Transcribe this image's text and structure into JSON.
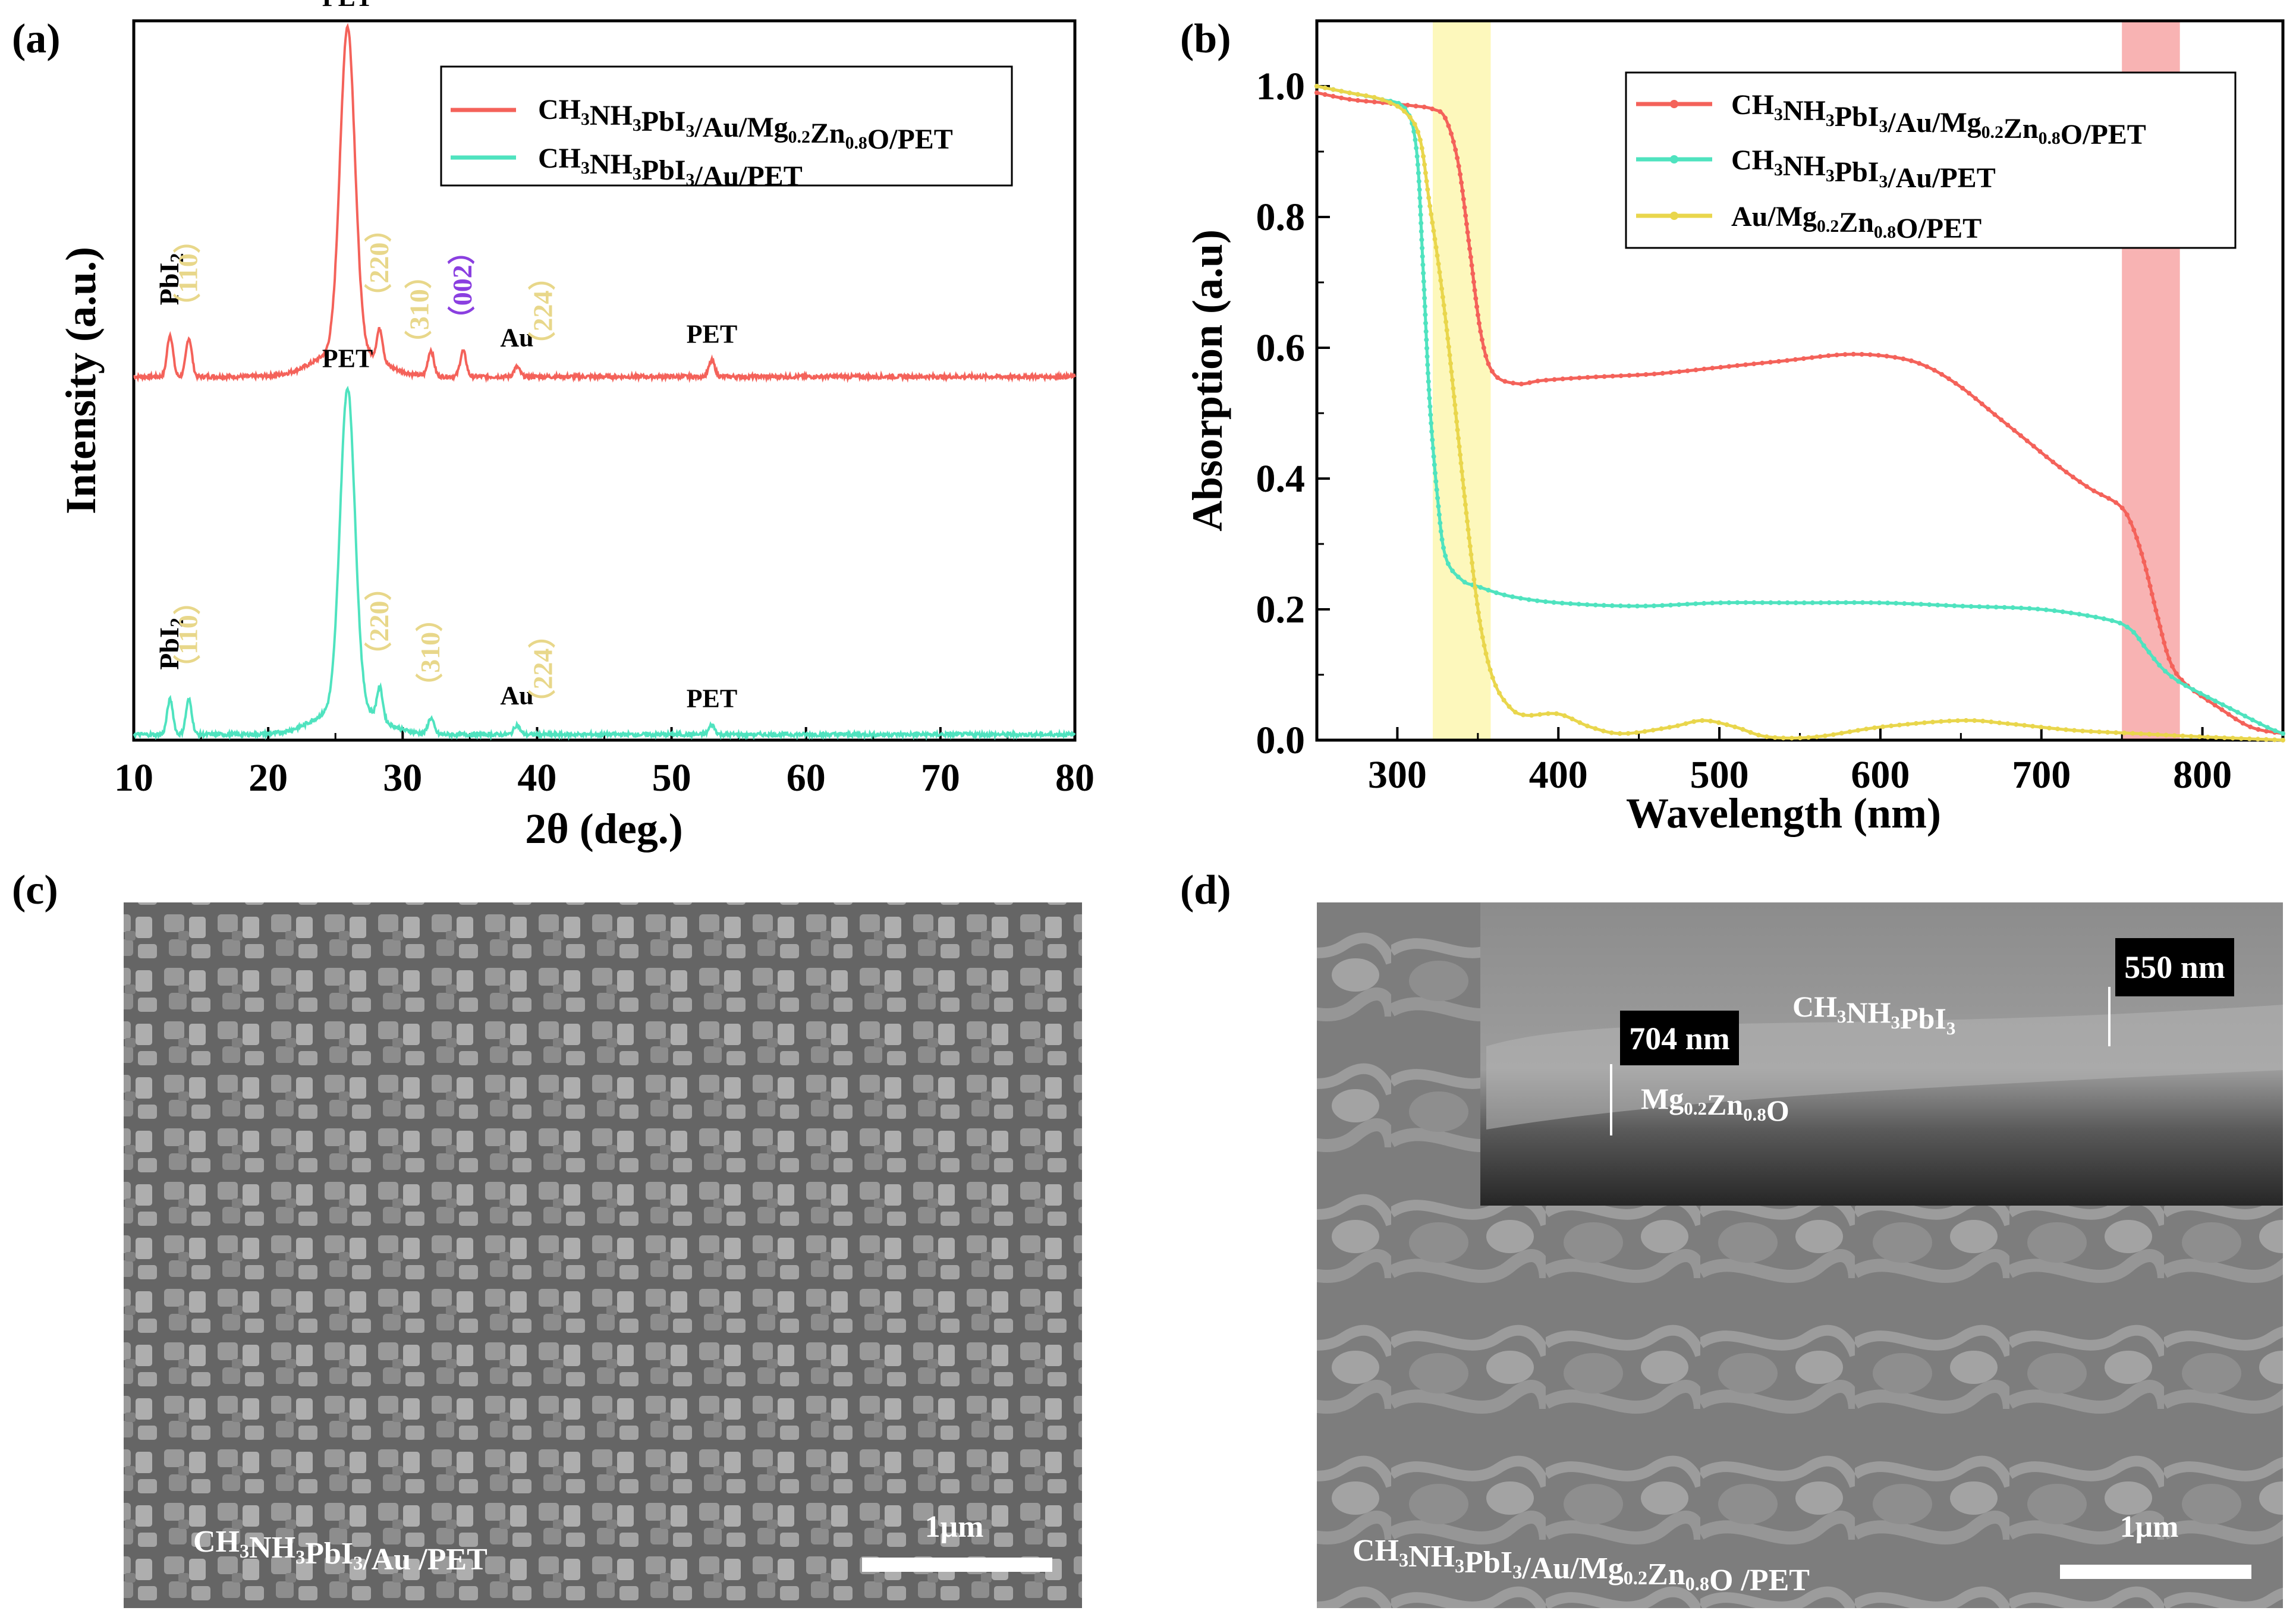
{
  "panels": {
    "a": "(a)",
    "b": "(b)",
    "c": "(c)",
    "d": "(d)"
  },
  "chart_data": [
    {
      "type": "line",
      "panel": "(a)",
      "title": "",
      "xlabel": "2θ (deg.)",
      "ylabel": "Intensity (a.u.)",
      "xlim": [
        10,
        80
      ],
      "xticks": [
        "10",
        "20",
        "30",
        "40",
        "50",
        "60",
        "70",
        "80"
      ],
      "series": [
        {
          "name": "CH3NH3PbI3/Au/Mg0.2Zn0.8O/PET",
          "legend_label": {
            "main": "CH",
            "parts": [
              [
                "CH",
                ""
              ],
              [
                "3",
                "sub"
              ],
              [
                "NH",
                ""
              ],
              [
                "3",
                "sub"
              ],
              [
                "PbI",
                ""
              ],
              [
                "3",
                "sub"
              ],
              [
                "/Au/Mg",
                ""
              ],
              [
                "0.2",
                "sub"
              ],
              [
                "Zn",
                ""
              ],
              [
                "0.8",
                "sub"
              ],
              [
                "O/PET",
                ""
              ]
            ]
          },
          "color": "#f4625a",
          "baseline": 0.1,
          "peaks": [
            [
              12.7,
              0.13
            ],
            [
              14.1,
              0.12
            ],
            [
              25.9,
              1.0
            ],
            [
              28.3,
              0.1
            ],
            [
              32.1,
              0.08
            ],
            [
              34.5,
              0.08
            ],
            [
              38.5,
              0.03
            ],
            [
              53,
              0.05
            ]
          ]
        },
        {
          "name": "CH3NH3PbI3/Au/PET",
          "legend_label": {
            "parts": [
              [
                "CH",
                ""
              ],
              [
                "3",
                "sub"
              ],
              [
                "NH",
                ""
              ],
              [
                "3",
                "sub"
              ],
              [
                "PbI",
                ""
              ],
              [
                "3",
                "sub"
              ],
              [
                "/Au/PET",
                ""
              ]
            ]
          },
          "color": "#4fe3bf",
          "baseline": 0.0,
          "peaks": [
            [
              12.7,
              0.11
            ],
            [
              14.1,
              0.11
            ],
            [
              25.9,
              1.0
            ],
            [
              28.3,
              0.1
            ],
            [
              32.1,
              0.05
            ],
            [
              38.5,
              0.03
            ],
            [
              53,
              0.03
            ]
          ]
        }
      ],
      "annotations": [
        {
          "text": "PET",
          "color": "#000000",
          "series": 0,
          "at": 25.9
        },
        {
          "text": "PbI2",
          "color": "#000000",
          "series": 0,
          "at": 12.7,
          "rot": true
        },
        {
          "text": "（110）",
          "color": "#e8d78a",
          "series": 0,
          "at": 14.1,
          "rot": true
        },
        {
          "text": "（220）",
          "color": "#e8d78a",
          "series": 0,
          "at": 28.3,
          "rot": true
        },
        {
          "text": "（310）",
          "color": "#e8d78a",
          "series": 0,
          "at": 31.3,
          "rot": true
        },
        {
          "text": "（002）",
          "color": "#8a3fe0",
          "series": 0,
          "at": 34.5,
          "rot": true
        },
        {
          "text": "Au",
          "color": "#000000",
          "series": 0,
          "at": 38.5
        },
        {
          "text": "（224）",
          "color": "#e8d78a",
          "series": 0,
          "at": 40.5,
          "rot": true
        },
        {
          "text": "PET",
          "color": "#000000",
          "series": 0,
          "at": 53
        },
        {
          "text": "PET",
          "color": "#000000",
          "series": 1,
          "at": 25.9
        },
        {
          "text": "PbI2",
          "color": "#000000",
          "series": 1,
          "at": 12.7,
          "rot": true
        },
        {
          "text": "（110）",
          "color": "#e8d78a",
          "series": 1,
          "at": 14.1,
          "rot": true
        },
        {
          "text": "（220）",
          "color": "#e8d78a",
          "series": 1,
          "at": 28.3,
          "rot": true
        },
        {
          "text": "（310）",
          "color": "#e8d78a",
          "series": 1,
          "at": 32.1,
          "rot": true
        },
        {
          "text": "Au",
          "color": "#000000",
          "series": 1,
          "at": 38.5
        },
        {
          "text": "（224）",
          "color": "#e8d78a",
          "series": 1,
          "at": 40.5,
          "rot": true
        },
        {
          "text": "PET",
          "color": "#000000",
          "series": 1,
          "at": 53
        }
      ]
    },
    {
      "type": "line",
      "panel": "(b)",
      "xlabel": "Wavelength (nm)",
      "ylabel": "Absorption (a.u)",
      "xlim": [
        250,
        850
      ],
      "ylim": [
        0.0,
        1.1
      ],
      "xticks": [
        300,
        400,
        500,
        600,
        700,
        800
      ],
      "yticks": [
        0.0,
        0.2,
        0.4,
        0.6,
        0.8,
        1.0
      ],
      "ytick_labels": [
        "0.0",
        "0.2",
        "0.4",
        "0.6",
        "0.8",
        "1.0"
      ],
      "xtick_labels": [
        "300",
        "400",
        "500",
        "600",
        "700",
        "800"
      ],
      "highlight_bands": [
        {
          "x": [
            322,
            358
          ],
          "color": "#fdf7b0"
        },
        {
          "x": [
            750,
            786
          ],
          "color": "#f7a6a6"
        }
      ],
      "series": [
        {
          "name": "CH3NH3PbI3/Au/Mg0.2Zn0.8O/PET",
          "legend_label": {
            "parts": [
              [
                "CH",
                ""
              ],
              [
                "3",
                "sub"
              ],
              [
                "NH",
                ""
              ],
              [
                "3",
                "sub"
              ],
              [
                "PbI",
                ""
              ],
              [
                "3",
                "sub"
              ],
              [
                "/Au/Mg",
                ""
              ],
              [
                "0.2",
                "sub"
              ],
              [
                "Zn",
                ""
              ],
              [
                "0.8",
                "sub"
              ],
              [
                "O/PET",
                ""
              ]
            ]
          },
          "color": "#f4625a",
          "x": [
            250,
            270,
            290,
            310,
            322,
            330,
            338,
            345,
            352,
            360,
            375,
            390,
            420,
            460,
            500,
            540,
            580,
            610,
            630,
            650,
            670,
            690,
            710,
            730,
            748,
            756,
            764,
            772,
            780,
            790,
            810,
            830,
            850
          ],
          "y": [
            0.99,
            0.98,
            0.975,
            0.97,
            0.965,
            0.95,
            0.88,
            0.75,
            0.62,
            0.56,
            0.545,
            0.55,
            0.555,
            0.56,
            0.57,
            0.58,
            0.59,
            0.585,
            0.57,
            0.54,
            0.5,
            0.46,
            0.42,
            0.385,
            0.36,
            0.33,
            0.27,
            0.19,
            0.12,
            0.085,
            0.05,
            0.02,
            0.01
          ]
        },
        {
          "name": "CH3NH3PbI3/Au/PET",
          "legend_label": {
            "parts": [
              [
                "CH",
                ""
              ],
              [
                "3",
                "sub"
              ],
              [
                "NH",
                ""
              ],
              [
                "3",
                "sub"
              ],
              [
                "PbI",
                ""
              ],
              [
                "3",
                "sub"
              ],
              [
                "/Au/PET",
                ""
              ]
            ]
          },
          "color": "#4fe3bf",
          "x": [
            250,
            270,
            290,
            305,
            312,
            316,
            320,
            325,
            330,
            340,
            350,
            370,
            400,
            450,
            500,
            550,
            600,
            650,
            700,
            740,
            755,
            765,
            775,
            785,
            800,
            820,
            840,
            850
          ],
          "y": [
            1.0,
            0.99,
            0.98,
            0.965,
            0.9,
            0.72,
            0.52,
            0.37,
            0.28,
            0.245,
            0.235,
            0.22,
            0.21,
            0.205,
            0.21,
            0.21,
            0.21,
            0.205,
            0.2,
            0.185,
            0.17,
            0.14,
            0.11,
            0.09,
            0.07,
            0.045,
            0.02,
            0.01
          ]
        },
        {
          "name": "Au/Mg0.2Zn0.8O/PET",
          "legend_label": {
            "parts": [
              [
                "Au/Mg",
                ""
              ],
              [
                "0.2",
                "sub"
              ],
              [
                "Zn",
                ""
              ],
              [
                "0.8",
                "sub"
              ],
              [
                "O/PET",
                ""
              ]
            ]
          },
          "color": "#e9d64c",
          "x": [
            250,
            270,
            290,
            305,
            314,
            320,
            326,
            332,
            338,
            345,
            352,
            360,
            370,
            380,
            400,
            420,
            440,
            470,
            490,
            510,
            530,
            560,
            600,
            650,
            680,
            720,
            760,
            800,
            850
          ],
          "y": [
            1.0,
            0.99,
            0.98,
            0.96,
            0.92,
            0.82,
            0.72,
            0.6,
            0.46,
            0.3,
            0.17,
            0.09,
            0.05,
            0.038,
            0.04,
            0.02,
            0.01,
            0.02,
            0.03,
            0.02,
            0.005,
            0.005,
            0.02,
            0.03,
            0.025,
            0.015,
            0.01,
            0.005,
            0.0
          ]
        }
      ]
    }
  ],
  "images": {
    "c": {
      "caption_parts": [
        [
          "CH",
          ""
        ],
        [
          "3",
          "sub"
        ],
        [
          "NH",
          ""
        ],
        [
          "3",
          "sub"
        ],
        [
          "PbI",
          ""
        ],
        [
          "3",
          "sub"
        ],
        [
          "/Au /PET",
          ""
        ]
      ],
      "scale_bar": "1μm"
    },
    "d": {
      "caption_parts": [
        [
          "CH",
          ""
        ],
        [
          "3",
          "sub"
        ],
        [
          "NH",
          ""
        ],
        [
          "3",
          "sub"
        ],
        [
          "PbI",
          ""
        ],
        [
          "3",
          "sub"
        ],
        [
          "/Au/Mg",
          ""
        ],
        [
          "0.2",
          "sub"
        ],
        [
          "Zn",
          ""
        ],
        [
          "0.8",
          "sub"
        ],
        [
          "O /PET",
          ""
        ]
      ],
      "scale_bar": "1μm",
      "inset": {
        "label_550": "550 nm",
        "label_704": "704 nm",
        "layer_top_parts": [
          [
            "CH",
            ""
          ],
          [
            "3",
            "sub"
          ],
          [
            "NH",
            ""
          ],
          [
            "3",
            "sub"
          ],
          [
            "PbI",
            ""
          ],
          [
            "3",
            "sub"
          ]
        ],
        "layer_bottom_parts": [
          [
            "Mg",
            ""
          ],
          [
            "0.2",
            "sub"
          ],
          [
            "Zn",
            ""
          ],
          [
            "0.8",
            "sub"
          ],
          [
            "O",
            ""
          ]
        ]
      }
    }
  }
}
